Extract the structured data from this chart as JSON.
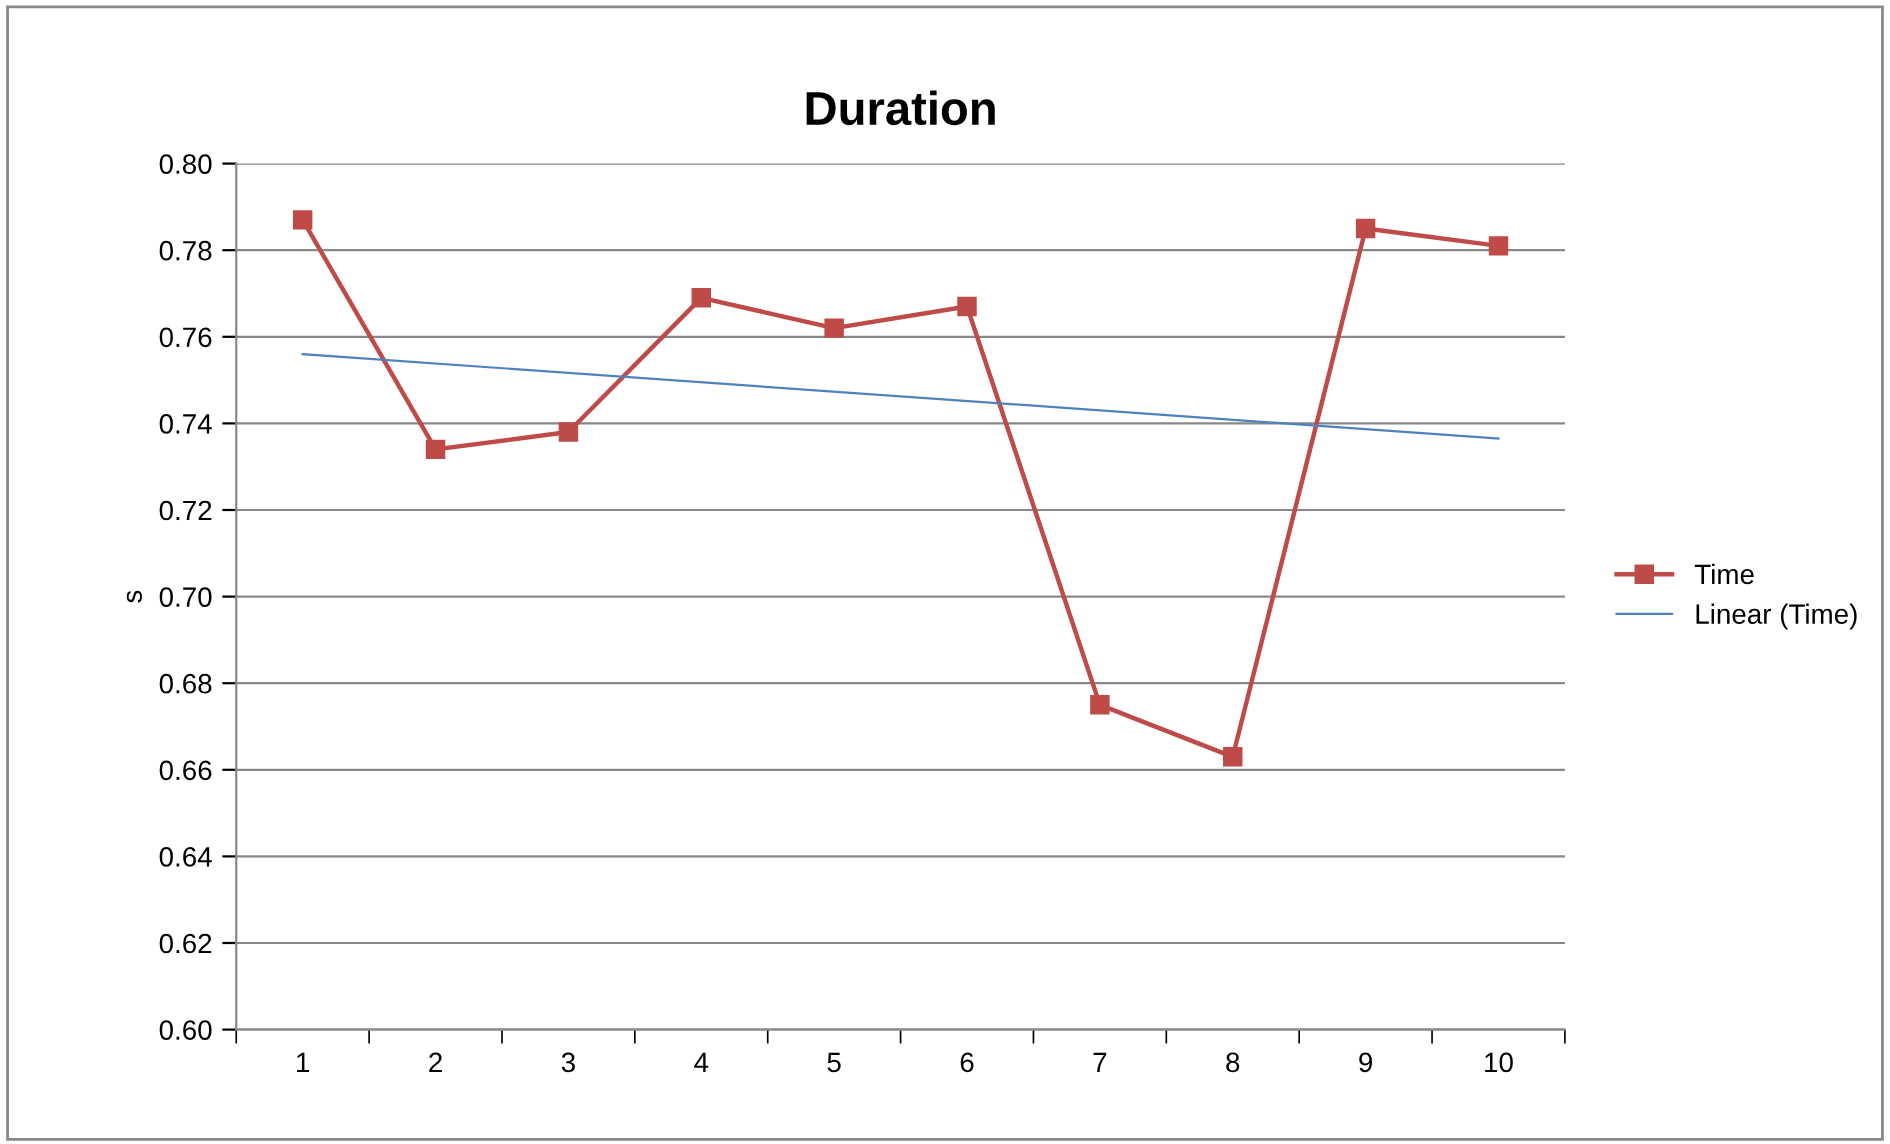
{
  "chart_data": {
    "type": "line",
    "title": "Duration",
    "ylabel": "s",
    "categories": [
      "1",
      "2",
      "3",
      "4",
      "5",
      "6",
      "7",
      "8",
      "9",
      "10"
    ],
    "series": [
      {
        "name": "Time",
        "color": "#be4b48",
        "marker": "square",
        "values": [
          0.787,
          0.734,
          0.738,
          0.769,
          0.762,
          0.767,
          0.675,
          0.663,
          0.785,
          0.781
        ]
      },
      {
        "name": "Linear (Time)",
        "color": "#4f81bd",
        "type": "line",
        "marker": "none",
        "x": [
          "1",
          "10"
        ],
        "values": [
          0.756,
          0.7365
        ]
      }
    ],
    "ylim": [
      0.6,
      0.8
    ],
    "yticks": [
      {
        "value": 0.6,
        "label": "0.60"
      },
      {
        "value": 0.62,
        "label": "0.62"
      },
      {
        "value": 0.64,
        "label": "0.64"
      },
      {
        "value": 0.66,
        "label": "0.66"
      },
      {
        "value": 0.68,
        "label": "0.68"
      },
      {
        "value": 0.7,
        "label": "0.70"
      },
      {
        "value": 0.72,
        "label": "0.72"
      },
      {
        "value": 0.74,
        "label": "0.74"
      },
      {
        "value": 0.76,
        "label": "0.76"
      },
      {
        "value": 0.78,
        "label": "0.78"
      },
      {
        "value": 0.8,
        "label": "0.80"
      }
    ],
    "grid": "y",
    "legend": "right"
  }
}
